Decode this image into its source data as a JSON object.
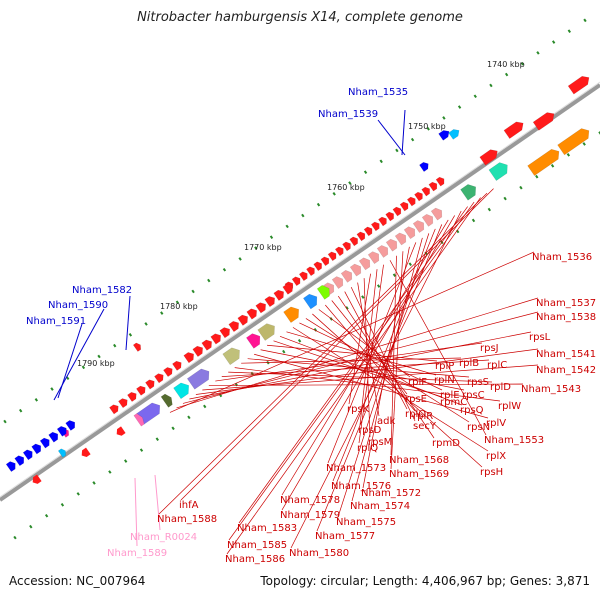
{
  "title": "Nitrobacter hamburgensis X14, complete genome",
  "footer": {
    "accession": "Accession: NC_007964",
    "summary": "Topology: circular; Length: 4,406,967 bp; Genes: 3,871"
  },
  "colors": {
    "gene_red": "#ff1a1a",
    "label_red": "#cc0000",
    "label_blue": "#0000cc",
    "label_pink": "#ff99cc",
    "tick_green": "#2a8a2a",
    "backbone": "#888888"
  },
  "kbp_labels": [
    {
      "text": "1740 kbp",
      "kbp": 1740
    },
    {
      "text": "1750 kbp",
      "kbp": 1750
    },
    {
      "text": "1760 kbp",
      "kbp": 1760
    },
    {
      "text": "1770 kbp",
      "kbp": 1770
    },
    {
      "text": "1780 kbp",
      "kbp": 1780
    },
    {
      "text": "1790 kbp",
      "kbp": 1790
    }
  ],
  "blue_labels": [
    "Nham_1535",
    "Nham_1539",
    "Nham_1582",
    "Nham_1590",
    "Nham_1591"
  ],
  "pink_labels": [
    "Nham_R0024",
    "Nham_1589"
  ],
  "red_labels": [
    "Nham_1536",
    "Nham_1537",
    "Nham_1538",
    "rpsL",
    "Nham_1541",
    "Nham_1542",
    "Nham_1543",
    "rpsJ",
    "rplC",
    "rplD",
    "rplW",
    "rplB",
    "rpsS",
    "rplV",
    "rpsC",
    "rplP",
    "rpmC",
    "rpsQ",
    "rplN",
    "rplX",
    "rplE",
    "rpsN",
    "rpsH",
    "rplF",
    "rplR",
    "rpsE",
    "rpmD",
    "rplO",
    "secY",
    "adk",
    "rpsM",
    "rpsK",
    "rpsD",
    "rplQ",
    "Nham_1553",
    "Nham_1568",
    "Nham_1569",
    "Nham_1572",
    "Nham_1573",
    "Nham_1574",
    "Nham_1575",
    "Nham_1576",
    "Nham_1577",
    "Nham_1578",
    "Nham_1579",
    "Nham_1580",
    "Nham_1583",
    "Nham_1585",
    "Nham_1586",
    "Nham_1588",
    "ihfA"
  ]
}
